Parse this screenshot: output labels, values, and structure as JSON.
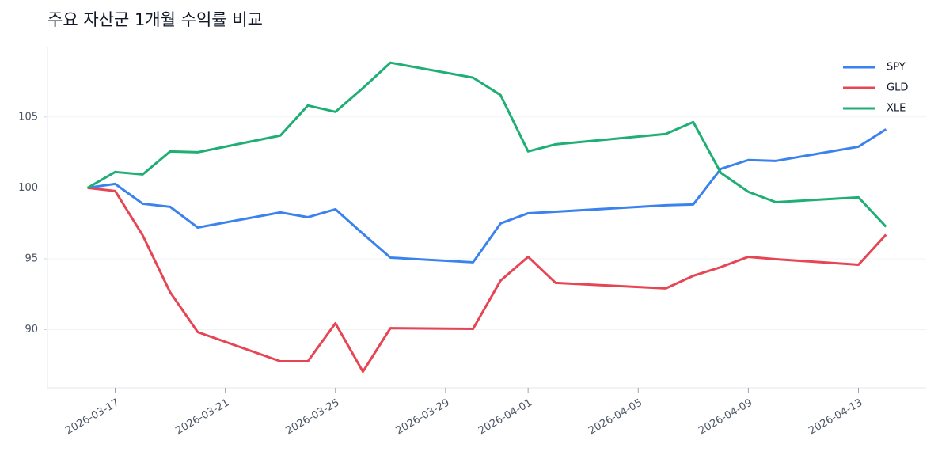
{
  "chart_data": {
    "type": "line",
    "title": "주요 자산군 1개월 수익률 비교",
    "x": [
      "2026-03-16",
      "2026-03-17",
      "2026-03-18",
      "2026-03-19",
      "2026-03-20",
      "2026-03-23",
      "2026-03-24",
      "2026-03-25",
      "2026-03-26",
      "2026-03-27",
      "2026-03-30",
      "2026-03-31",
      "2026-04-01",
      "2026-04-02",
      "2026-04-06",
      "2026-04-07",
      "2026-04-08",
      "2026-04-09",
      "2026-04-10",
      "2026-04-13",
      "2026-04-14"
    ],
    "series": [
      {
        "name": "SPY",
        "color": "#3a82ee",
        "values": [
          100,
          100.28,
          98.88,
          98.66,
          97.2,
          98.27,
          97.93,
          98.49,
          96.76,
          95.08,
          94.75,
          97.49,
          98.21,
          98.32,
          98.77,
          98.83,
          101.34,
          101.96,
          101.9,
          102.9,
          104.13
        ]
      },
      {
        "name": "GLD",
        "color": "#e64553",
        "values": [
          100,
          99.78,
          96.65,
          92.63,
          89.83,
          87.77,
          87.77,
          90.45,
          87.04,
          90.11,
          90.06,
          93.46,
          95.14,
          93.3,
          92.91,
          93.8,
          94.41,
          95.14,
          94.97,
          94.58,
          96.7
        ]
      },
      {
        "name": "XLE",
        "color": "#1fae74",
        "values": [
          100,
          101.12,
          100.95,
          102.57,
          102.51,
          103.69,
          105.81,
          105.36,
          107.04,
          108.83,
          107.77,
          106.54,
          102.57,
          103.07,
          103.8,
          104.64,
          101.06,
          99.72,
          98.99,
          99.33,
          97.26
        ]
      }
    ],
    "xlim": [
      "2026-03-14T13:00:00Z",
      "2026-04-15T11:00:00Z"
    ],
    "xticks": [
      "2026-03-17",
      "2026-03-21",
      "2026-03-25",
      "2026-03-29",
      "2026-04-01",
      "2026-04-05",
      "2026-04-09",
      "2026-04-13"
    ],
    "ylim": [
      85.9,
      109.9
    ],
    "yticks": [
      90,
      95,
      100,
      105
    ],
    "grid": true,
    "legend": "upper right"
  }
}
